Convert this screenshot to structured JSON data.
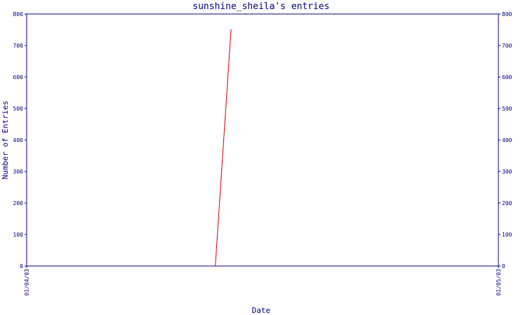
{
  "chart_data": {
    "type": "line",
    "title": "sunshine_sheila's entries",
    "xlabel": "Date",
    "ylabel": "Number of Entries",
    "ylim": [
      0,
      800
    ],
    "yticks": [
      0,
      100,
      200,
      300,
      400,
      500,
      600,
      700,
      800
    ],
    "xlim": [
      "01/04/03",
      "01/05/03"
    ],
    "xticks": [
      "01/04/03",
      "01/05/03"
    ],
    "grid": false,
    "series": [
      {
        "color": "#cc0000",
        "x": [
          "2003-04-13",
          "2003-04-14"
        ],
        "y": [
          0,
          752
        ]
      }
    ]
  }
}
